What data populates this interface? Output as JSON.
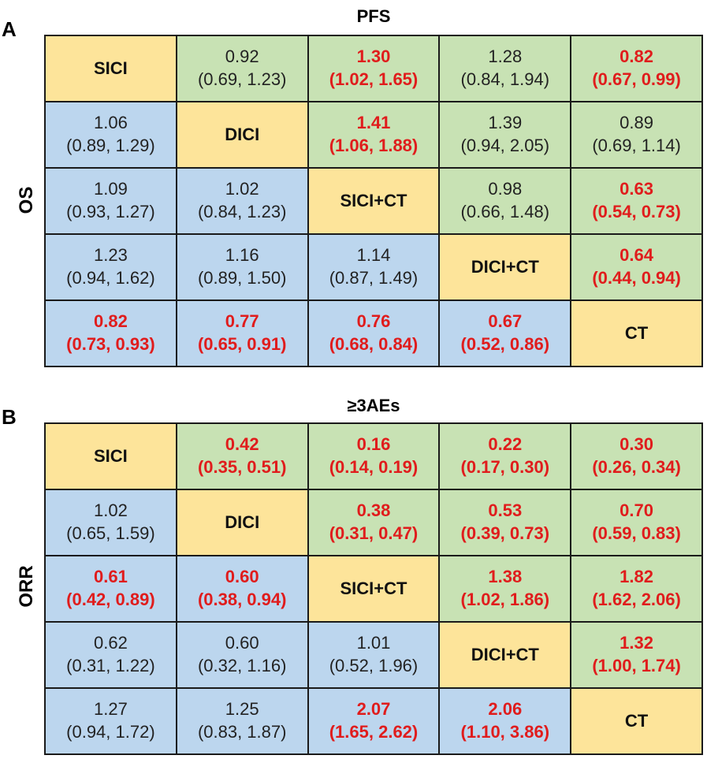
{
  "panels": [
    {
      "letter": "A",
      "title": "PFS",
      "side_label": "OS",
      "rows": [
        [
          {
            "type": "diag",
            "label": "SICI"
          },
          {
            "type": "upper",
            "value": "0.92",
            "ci": "(0.69, 1.23)",
            "sig": false
          },
          {
            "type": "upper",
            "value": "1.30",
            "ci": "(1.02, 1.65)",
            "sig": true
          },
          {
            "type": "upper",
            "value": "1.28",
            "ci": "(0.84, 1.94)",
            "sig": false
          },
          {
            "type": "upper",
            "value": "0.82",
            "ci": "(0.67, 0.99)",
            "sig": true
          }
        ],
        [
          {
            "type": "lower",
            "value": "1.06",
            "ci": "(0.89, 1.29)",
            "sig": false
          },
          {
            "type": "diag",
            "label": "DICI"
          },
          {
            "type": "upper",
            "value": "1.41",
            "ci": "(1.06, 1.88)",
            "sig": true
          },
          {
            "type": "upper",
            "value": "1.39",
            "ci": "(0.94, 2.05)",
            "sig": false
          },
          {
            "type": "upper",
            "value": "0.89",
            "ci": "(0.69, 1.14)",
            "sig": false
          }
        ],
        [
          {
            "type": "lower",
            "value": "1.09",
            "ci": "(0.93, 1.27)",
            "sig": false
          },
          {
            "type": "lower",
            "value": "1.02",
            "ci": "(0.84, 1.23)",
            "sig": false
          },
          {
            "type": "diag",
            "label": "SICI+CT"
          },
          {
            "type": "upper",
            "value": "0.98",
            "ci": "(0.66, 1.48)",
            "sig": false
          },
          {
            "type": "upper",
            "value": "0.63",
            "ci": "(0.54, 0.73)",
            "sig": true
          }
        ],
        [
          {
            "type": "lower",
            "value": "1.23",
            "ci": "(0.94, 1.62)",
            "sig": false
          },
          {
            "type": "lower",
            "value": "1.16",
            "ci": "(0.89, 1.50)",
            "sig": false
          },
          {
            "type": "lower",
            "value": "1.14",
            "ci": "(0.87, 1.49)",
            "sig": false
          },
          {
            "type": "diag",
            "label": "DICI+CT"
          },
          {
            "type": "upper",
            "value": "0.64",
            "ci": "(0.44, 0.94)",
            "sig": true
          }
        ],
        [
          {
            "type": "lower",
            "value": "0.82",
            "ci": "(0.73, 0.93)",
            "sig": true
          },
          {
            "type": "lower",
            "value": "0.77",
            "ci": "(0.65, 0.91)",
            "sig": true
          },
          {
            "type": "lower",
            "value": "0.76",
            "ci": "(0.68, 0.84)",
            "sig": true
          },
          {
            "type": "lower",
            "value": "0.67",
            "ci": "(0.52, 0.86)",
            "sig": true
          },
          {
            "type": "diag",
            "label": "CT"
          }
        ]
      ]
    },
    {
      "letter": "B",
      "title": "≥3AEs",
      "side_label": "ORR",
      "rows": [
        [
          {
            "type": "diag",
            "label": "SICI"
          },
          {
            "type": "upper",
            "value": "0.42",
            "ci": "(0.35, 0.51)",
            "sig": true
          },
          {
            "type": "upper",
            "value": "0.16",
            "ci": "(0.14, 0.19)",
            "sig": true
          },
          {
            "type": "upper",
            "value": "0.22",
            "ci": "(0.17, 0.30)",
            "sig": true
          },
          {
            "type": "upper",
            "value": "0.30",
            "ci": "(0.26, 0.34)",
            "sig": true
          }
        ],
        [
          {
            "type": "lower",
            "value": "1.02",
            "ci": "(0.65, 1.59)",
            "sig": false
          },
          {
            "type": "diag",
            "label": "DICI"
          },
          {
            "type": "upper",
            "value": "0.38",
            "ci": "(0.31, 0.47)",
            "sig": true
          },
          {
            "type": "upper",
            "value": "0.53",
            "ci": "(0.39, 0.73)",
            "sig": true
          },
          {
            "type": "upper",
            "value": "0.70",
            "ci": "(0.59, 0.83)",
            "sig": true
          }
        ],
        [
          {
            "type": "lower",
            "value": "0.61",
            "ci": "(0.42, 0.89)",
            "sig": true
          },
          {
            "type": "lower",
            "value": "0.60",
            "ci": "(0.38, 0.94)",
            "sig": true
          },
          {
            "type": "diag",
            "label": "SICI+CT"
          },
          {
            "type": "upper",
            "value": "1.38",
            "ci": "(1.02, 1.86)",
            "sig": true
          },
          {
            "type": "upper",
            "value": "1.82",
            "ci": "(1.62, 2.06)",
            "sig": true
          }
        ],
        [
          {
            "type": "lower",
            "value": "0.62",
            "ci": "(0.31, 1.22)",
            "sig": false
          },
          {
            "type": "lower",
            "value": "0.60",
            "ci": "(0.32, 1.16)",
            "sig": false
          },
          {
            "type": "lower",
            "value": "1.01",
            "ci": "(0.52, 1.96)",
            "sig": false
          },
          {
            "type": "diag",
            "label": "DICI+CT"
          },
          {
            "type": "upper",
            "value": "1.32",
            "ci": "(1.00, 1.74)",
            "sig": true
          }
        ],
        [
          {
            "type": "lower",
            "value": "1.27",
            "ci": "(0.94, 1.72)",
            "sig": false
          },
          {
            "type": "lower",
            "value": "1.25",
            "ci": "(0.83, 1.87)",
            "sig": false
          },
          {
            "type": "lower",
            "value": "2.07",
            "ci": "(1.65, 2.62)",
            "sig": true
          },
          {
            "type": "lower",
            "value": "2.06",
            "ci": "(1.10, 3.86)",
            "sig": true
          },
          {
            "type": "diag",
            "label": "CT"
          }
        ]
      ]
    }
  ],
  "colors": {
    "diagonal": "#fde49a",
    "upper": "#c8e2b4",
    "lower": "#bcd6ee",
    "significant": "#e01c1c"
  },
  "chart_data": {
    "type": "table",
    "treatments": [
      "SICI",
      "DICI",
      "SICI+CT",
      "DICI+CT",
      "CT"
    ]
  }
}
